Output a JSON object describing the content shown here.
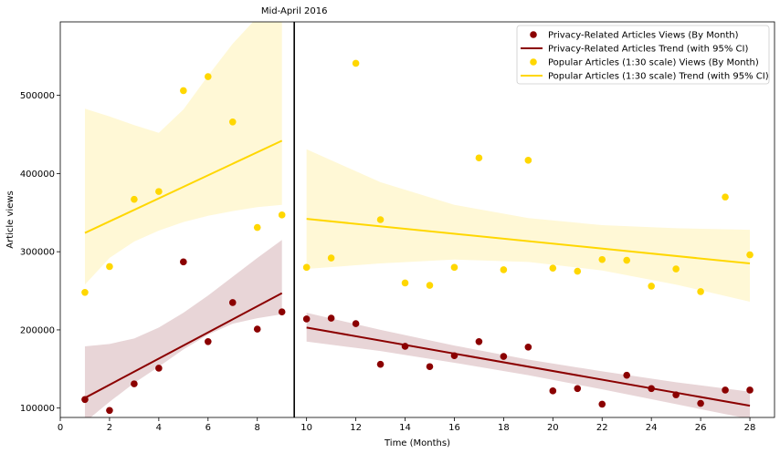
{
  "chart_data": {
    "type": "scatter",
    "xlabel": "Time (Months)",
    "ylabel": "Article views",
    "xlim": [
      0,
      29
    ],
    "ylim": [
      88000,
      594000
    ],
    "x_ticks": [
      0,
      2,
      4,
      6,
      8,
      10,
      12,
      14,
      16,
      18,
      20,
      22,
      24,
      26,
      28
    ],
    "y_ticks": [
      100000,
      200000,
      300000,
      400000,
      500000
    ],
    "grid": false,
    "legend_position": "top-right",
    "annotation": {
      "text": "Mid-April 2016",
      "x": 9.5
    },
    "series": [
      {
        "name": "Privacy-Related Articles Views (By Month)",
        "kind": "scatter",
        "color": "#8b0000",
        "x": [
          1,
          2,
          3,
          4,
          5,
          6,
          7,
          8,
          9,
          10,
          11,
          12,
          13,
          14,
          15,
          16,
          17,
          18,
          19,
          20,
          21,
          22,
          23,
          24,
          25,
          26,
          27,
          28
        ],
        "y": [
          111000,
          97000,
          131000,
          151000,
          287000,
          185000,
          235000,
          201000,
          223000,
          214000,
          215000,
          208000,
          156000,
          179000,
          153000,
          167000,
          185000,
          166000,
          178000,
          122000,
          125000,
          105000,
          142000,
          125000,
          117000,
          106000,
          123000,
          123000
        ]
      },
      {
        "name": "Privacy-Related Articles Trend (with 95% CI)",
        "kind": "trend",
        "color": "#8b0000",
        "ci_color": "#e8d5d7",
        "segments": [
          {
            "x": [
              1,
              9
            ],
            "y": [
              113000,
              247000
            ],
            "ci_x": [
              1,
              2,
              3,
              4,
              5,
              6,
              7,
              8,
              9
            ],
            "ci_lower": [
              82000,
              108000,
              132000,
              153000,
              175000,
              194000,
              208000,
              215000,
              220000
            ],
            "ci_upper": [
              179000,
              182000,
              189000,
              203000,
              222000,
              244000,
              268000,
              292000,
              315000
            ]
          },
          {
            "x": [
              10,
              28
            ],
            "y": [
              203000,
              103000
            ],
            "ci_x": [
              10,
              13,
              16,
              19,
              22,
              25,
              28
            ],
            "ci_lower": [
              185000,
              173000,
              158000,
              142000,
              124000,
              105000,
              86000
            ],
            "ci_upper": [
              222000,
              200000,
              180000,
              162000,
              147000,
              133000,
              121000
            ]
          }
        ]
      },
      {
        "name": "Popular Articles (1:30 scale) Views (By Month)",
        "kind": "scatter",
        "color": "#ffd700",
        "x": [
          1,
          2,
          3,
          4,
          5,
          6,
          7,
          8,
          9,
          10,
          11,
          12,
          13,
          14,
          15,
          16,
          17,
          18,
          19,
          20,
          21,
          22,
          23,
          24,
          25,
          26,
          27,
          28
        ],
        "y": [
          248000,
          281000,
          367000,
          377000,
          506000,
          524000,
          466000,
          331000,
          347000,
          280000,
          292000,
          541000,
          341000,
          260000,
          257000,
          280000,
          420000,
          277000,
          417000,
          279000,
          275000,
          290000,
          289000,
          256000,
          278000,
          249000,
          370000,
          296000
        ]
      },
      {
        "name": "Popular Articles (1:30 scale) Trend (with 95% CI)",
        "kind": "trend",
        "color": "#ffd700",
        "ci_color": "#fff8d6",
        "segments": [
          {
            "x": [
              1,
              9
            ],
            "y": [
              324000,
              442000
            ],
            "ci_x": [
              1,
              2,
              3,
              4,
              5,
              6,
              7,
              8,
              9
            ],
            "ci_lower": [
              258000,
              292000,
              313000,
              327000,
              338000,
              346000,
              352000,
              357000,
              360000
            ],
            "ci_upper": [
              483000,
              473000,
              462000,
              452000,
              482000,
              525000,
              566000,
              600000,
              600000
            ]
          },
          {
            "x": [
              10,
              28
            ],
            "y": [
              342000,
              285000
            ],
            "ci_x": [
              10,
              13,
              16,
              19,
              22,
              25,
              28
            ],
            "ci_lower": [
              278000,
              285000,
              290000,
              287000,
              276000,
              258000,
              236000
            ],
            "ci_upper": [
              431000,
              389000,
              360000,
              343000,
              334000,
              330000,
              328000
            ]
          }
        ]
      }
    ]
  }
}
